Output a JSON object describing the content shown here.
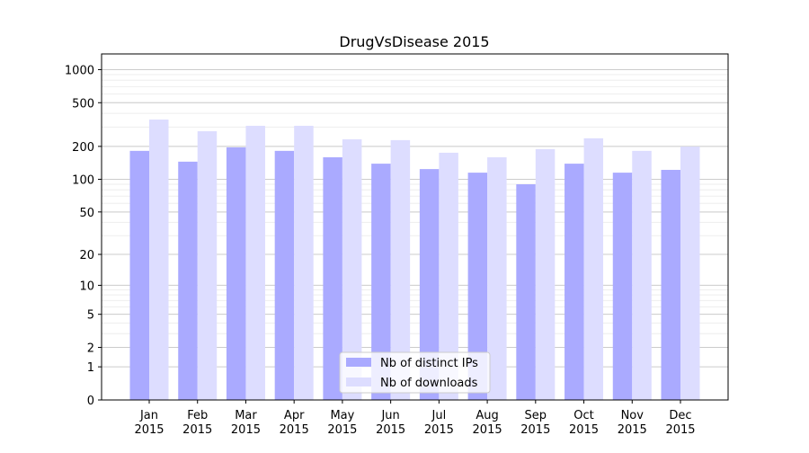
{
  "chart_data": {
    "type": "bar",
    "title": "DrugVsDisease 2015",
    "xlabel": "",
    "ylabel": "",
    "yscale": "symlog",
    "ylim": [
      0,
      1300
    ],
    "grid": true,
    "legend_position": "bottom-center",
    "categories": [
      "Jan\n2015",
      "Feb\n2015",
      "Mar\n2015",
      "Apr\n2015",
      "May\n2015",
      "Jun\n2015",
      "Jul\n2015",
      "Aug\n2015",
      "Sep\n2015",
      "Oct\n2015",
      "Nov\n2015",
      "Dec\n2015"
    ],
    "yticks": [
      0,
      1,
      2,
      5,
      10,
      20,
      50,
      100,
      200,
      500,
      1000
    ],
    "series": [
      {
        "name": "Nb of distinct IPs",
        "color": "#aaaaff",
        "values": [
          182,
          145,
          196,
          182,
          159,
          139,
          124,
          115,
          90,
          139,
          115,
          122
        ]
      },
      {
        "name": "Nb of downloads",
        "color": "#ddddff",
        "values": [
          351,
          275,
          308,
          308,
          232,
          228,
          175,
          159,
          189,
          237,
          182,
          199
        ]
      }
    ]
  }
}
